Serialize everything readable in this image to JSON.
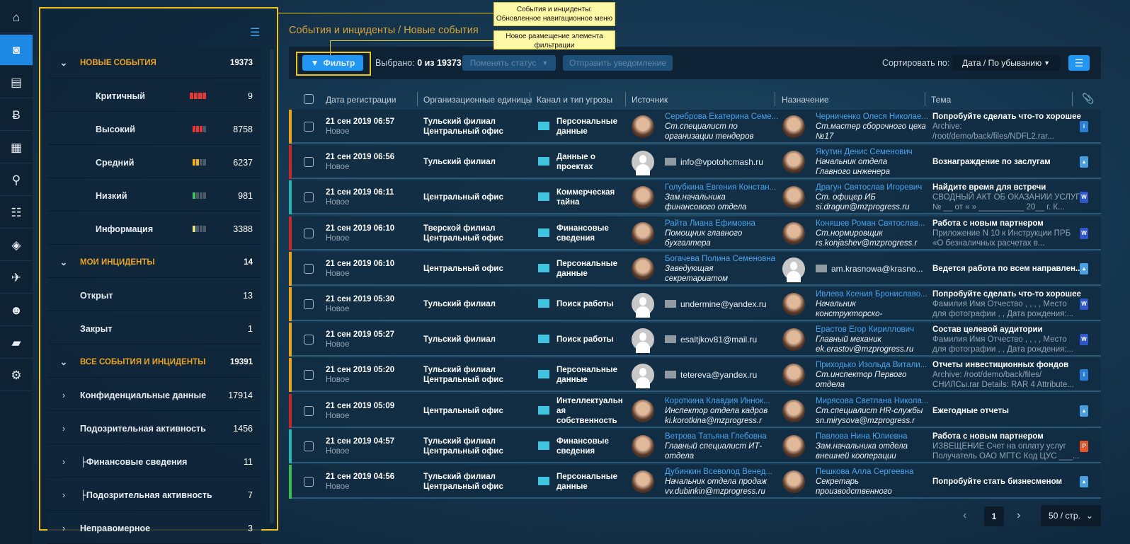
{
  "rail": {
    "icons": [
      "home-icon",
      "dashboard-icon",
      "id-card-icon",
      "bitcoin-icon",
      "calendar-icon",
      "search-icon",
      "report-icon",
      "agent-icon",
      "plane-icon",
      "users-icon",
      "books-icon",
      "gear-icon"
    ],
    "active": 1
  },
  "sidebar": {
    "sections": [
      {
        "label": "Новые события",
        "count": "19373",
        "items": [
          {
            "label": "Критичный",
            "count": "9",
            "level": 1,
            "color": "#e53935"
          },
          {
            "label": "Высокий",
            "count": "8758",
            "level": 0.75,
            "color": "#e53935"
          },
          {
            "label": "Средний",
            "count": "6237",
            "level": 0.5,
            "color": "#f2b01e"
          },
          {
            "label": "Низкий",
            "count": "981",
            "level": 0.25,
            "color": "#43c463"
          },
          {
            "label": "Информация",
            "count": "3388",
            "level": 0.25,
            "color": "#e8e08a"
          }
        ]
      },
      {
        "label": "Мои инциденты",
        "count": "14",
        "items": [
          {
            "label": "Открыт",
            "count": "13"
          },
          {
            "label": "Закрыт",
            "count": "1"
          }
        ]
      },
      {
        "label": "Все события и инциденты",
        "count": "19391",
        "items": [
          {
            "label": "Конфиденциальные данные",
            "count": "17914"
          },
          {
            "label": "Подозрительная активность",
            "count": "1456"
          },
          {
            "label": "├Финансовые сведения",
            "count": "11"
          },
          {
            "label": "├Подозрительная активность",
            "count": "7"
          },
          {
            "label": "Неправомерное",
            "count": "3"
          }
        ]
      }
    ]
  },
  "breadcrumb": "События и инциденты / Новые события",
  "annotations": [
    "События и инциденты:\nОбновленное навигационное меню",
    "Новое размещение элемента\nфильтрации"
  ],
  "toolbar": {
    "filter": "Фильтр",
    "selected_label": "Выбрано:",
    "selected_value": "0 из 19373",
    "change_status": "Поменять статус",
    "send_notification": "Отправить уведомление",
    "sort_label": "Сортировать по:",
    "sort_value": "Дата / По убыванию"
  },
  "colors": {
    "accent": "#1e88e5",
    "highlight": "#f0c419",
    "critical": "#c62828",
    "high": "#e8a21c",
    "info": "#26b5b0",
    "low": "#3cba54"
  },
  "table": {
    "columns": [
      "Дата регистрации",
      "Организационные единицы",
      "Канал и тип угрозы",
      "Источник",
      "Назначение",
      "Тема"
    ],
    "rows": [
      {
        "stripe": "#e8a21c",
        "date": "21 сен 2019 06:57",
        "status": "Новое",
        "org": [
          "Тульский филиал",
          "Центральный офис"
        ],
        "channel": [
          "Персональные",
          "данные"
        ],
        "src": {
          "name": "Сереброва Екатерина Семе...",
          "lines": [
            "Ст.специалист по",
            "организации тендеров"
          ]
        },
        "dst": {
          "name": "Черниченко Олеся Николае...",
          "lines": [
            "Ст.мастер сборочного цеха",
            "№17"
          ]
        },
        "topic": "Попробуйте сделать что-то хорошее",
        "detail": [
          "Archive:",
          "/root/demo/back/files/NDFL2.rar..."
        ],
        "file": "doc"
      },
      {
        "stripe": "#c62828",
        "date": "21 сен 2019 06:56",
        "status": "Новое",
        "org": [
          "Тульский филиал"
        ],
        "channel": [
          "Данные о",
          "проектах"
        ],
        "src": {
          "email": "info@vpotohcmash.ru"
        },
        "dst": {
          "name": "Якутин Денис Семенович",
          "lines": [
            "Начальник отдела",
            "Главного инженера"
          ]
        },
        "topic": "Вознаграждение по заслугам",
        "detail": [],
        "file": "img"
      },
      {
        "stripe": "#26b5b0",
        "date": "21 сен 2019 06:11",
        "status": "Новое",
        "org": [
          "Центральный офис"
        ],
        "channel": [
          "Коммерческая",
          "тайна"
        ],
        "src": {
          "name": "Голубкина Евгения Констан...",
          "lines": [
            "Зам.начальника",
            "финансового отдела"
          ]
        },
        "dst": {
          "name": "Драгун Святослав Игоревич",
          "lines": [
            "Ст. офицер ИБ",
            "si.dragun@mzprogress.ru"
          ]
        },
        "topic": "Найдите время для встречи",
        "detail": [
          "СВОДНЫЙ АКТ ОБ ОКАЗАНИИ УСЛУГ",
          "№ __ от « » __________ 20__ г. К..."
        ],
        "file": "word"
      },
      {
        "stripe": "#c62828",
        "date": "21 сен 2019 06:10",
        "status": "Новое",
        "org": [
          "Тверской филиал",
          "Центральный офис"
        ],
        "channel": [
          "Финансовые",
          "сведения"
        ],
        "src": {
          "name": "Райта Лиана Ефимовна",
          "lines": [
            "Помощник главного",
            "бухгалтера"
          ]
        },
        "dst": {
          "name": "Коняшев Роман Святослав...",
          "lines": [
            "Ст.нормировщик",
            "rs.konjashev@mzprogress.r"
          ]
        },
        "topic": "Работа с новым партнером",
        "detail": [
          "Приложение N 10 к Инструкции ПРБ",
          "«О безналичных расчетах в..."
        ],
        "file": "word"
      },
      {
        "stripe": "#e8a21c",
        "date": "21 сен 2019 06:10",
        "status": "Новое",
        "org": [
          "Центральный офис"
        ],
        "channel": [
          "Персональные",
          "данные"
        ],
        "src": {
          "name": "Богачева Полина Семеновна",
          "lines": [
            "Заведующая",
            "секретариатом"
          ]
        },
        "dst": {
          "email": "am.krasnowa@krasno..."
        },
        "topic": "Ведется работа по всем направлен...",
        "detail": [],
        "file": "img"
      },
      {
        "stripe": "#e8a21c",
        "date": "21 сен 2019 05:30",
        "status": "Новое",
        "org": [
          "Тульский филиал"
        ],
        "channel": [
          "Поиск работы"
        ],
        "src": {
          "email": "undermine@yandex.ru"
        },
        "dst": {
          "name": "Ивлева Ксения Брониславо...",
          "lines": [
            "Начальник",
            "конструкторско-"
          ]
        },
        "topic": "Попробуйте сделать что-то хорошее",
        "detail": [
          "Фамилия Имя Отчество , , , , Место",
          "для фотографии , , Дата рождения:..."
        ],
        "file": "word"
      },
      {
        "stripe": "#e8a21c",
        "date": "21 сен 2019 05:27",
        "status": "Новое",
        "org": [
          "Тульский филиал"
        ],
        "channel": [
          "Поиск работы"
        ],
        "src": {
          "email": "esaltjkov81@mail.ru"
        },
        "dst": {
          "name": "Ерастов Егор Кириллович",
          "lines": [
            "Главный механик",
            "ek.erastov@mzprogress.ru"
          ]
        },
        "topic": "Состав целевой аудитории",
        "detail": [
          "Фамилия Имя Отчество , , , , Место",
          "для фотографии , , Дата рождения:..."
        ],
        "file": "word"
      },
      {
        "stripe": "#e8a21c",
        "date": "21 сен 2019 05:20",
        "status": "Новое",
        "org": [
          "Тульский филиал",
          "Центральный офис"
        ],
        "channel": [
          "Персональные",
          "данные"
        ],
        "src": {
          "email": "tetereva@yandex.ru"
        },
        "dst": {
          "name": "Приходько Изольда Витали...",
          "lines": [
            "Ст.инспектор Первого",
            "отдела"
          ]
        },
        "topic": "Отчеты инвестиционных фондов",
        "detail": [
          "Archive: /root/demo/back/files/",
          "СНИЛСы.rar Details: RAR 4 Attribute..."
        ],
        "file": "doc"
      },
      {
        "stripe": "#c62828",
        "date": "21 сен 2019 05:09",
        "status": "Новое",
        "org": [
          "Центральный офис"
        ],
        "channel": [
          "Интеллектуальн",
          "ая",
          "собственность"
        ],
        "src": {
          "name": "Короткина Клавдия Иннок...",
          "lines": [
            "Инспектор отдела кадров",
            "ki.korotkina@mzprogress.r"
          ]
        },
        "dst": {
          "name": "Мирясова Светлана Никола...",
          "lines": [
            "Ст.специалист HR-службы",
            "sn.mirysova@mzprogress.r"
          ]
        },
        "topic": "Ежегодные отчеты",
        "detail": [],
        "file": "img"
      },
      {
        "stripe": "#26b5b0",
        "date": "21 сен 2019 04:57",
        "status": "Новое",
        "org": [
          "Тульский филиал",
          "Центральный офис"
        ],
        "channel": [
          "Финансовые",
          "сведения"
        ],
        "src": {
          "name": "Ветрова Татьяна Глебовна",
          "lines": [
            "Главный специалист ИТ-",
            "отдела"
          ]
        },
        "dst": {
          "name": "Павлова Нина Юлиевна",
          "lines": [
            "Зам.начальника отдела",
            "внешней кооперации"
          ]
        },
        "topic": "Работа с новым партнером",
        "detail": [
          "ИЗВЕЩЕНИЕ Счет на оплату услуг",
          "Получатель ОАО МГТС Код ЦУС ___..."
        ],
        "file": "pdf"
      },
      {
        "stripe": "#3cba54",
        "date": "21 сен 2019 04:56",
        "status": "Новое",
        "org": [
          "Тульский филиал",
          "Центральный офис"
        ],
        "channel": [
          "Персональные",
          "данные"
        ],
        "src": {
          "name": "Дубинкин Всеволод Венед...",
          "lines": [
            "Начальник отдела продаж",
            "vv.dubinkin@mzprogress.ru"
          ]
        },
        "dst": {
          "name": "Пешкова Алла Сергеевна",
          "lines": [
            "Секретарь",
            "производственного"
          ]
        },
        "topic": "Попробуйте стать бизнесменом",
        "detail": [],
        "file": "img"
      }
    ]
  },
  "pagination": {
    "page": "1",
    "per_page": "50 / стр."
  }
}
